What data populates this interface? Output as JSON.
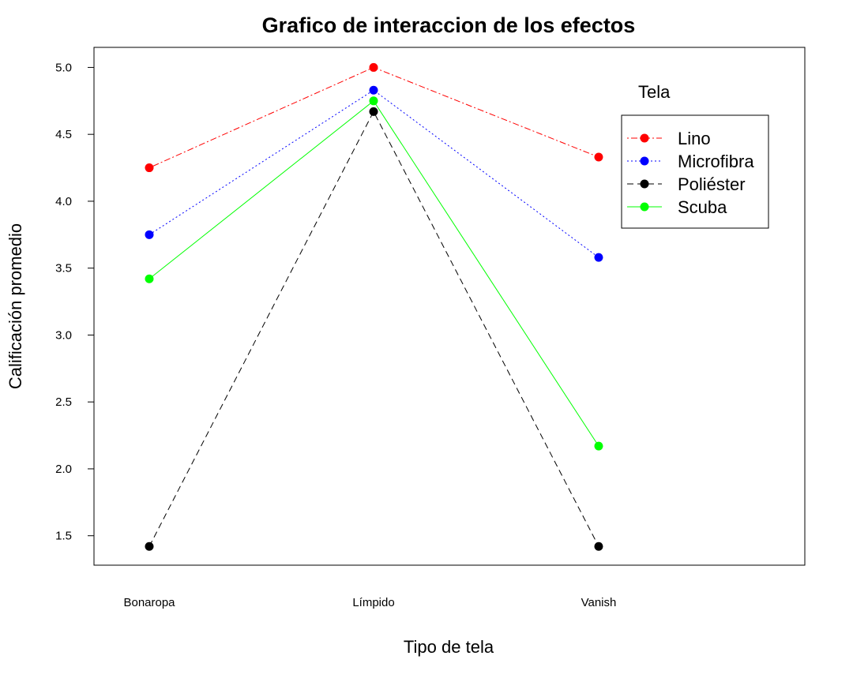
{
  "chart_data": {
    "type": "line",
    "title": "Grafico de interaccion de los efectos",
    "xlabel": "Tipo de tela",
    "ylabel": "Calificación promedio",
    "categories": [
      "Bonaropa",
      "Límpido",
      "Vanish"
    ],
    "ylim": [
      1.28,
      5.15
    ],
    "yticks": [
      1.5,
      2.0,
      2.5,
      3.0,
      3.5,
      4.0,
      4.5,
      5.0
    ],
    "ytick_labels": [
      "1.5",
      "2.0",
      "2.5",
      "3.0",
      "3.5",
      "4.0",
      "4.5",
      "5.0"
    ],
    "grid": false,
    "legend": {
      "title": "Tela",
      "position": "top-right"
    },
    "series": [
      {
        "name": "Lino",
        "values": [
          4.25,
          5.0,
          4.33
        ],
        "color": "#ff0000",
        "dash": "dotdash"
      },
      {
        "name": "Microfibra",
        "values": [
          3.75,
          4.83,
          3.58
        ],
        "color": "#0000ff",
        "dash": "dotted"
      },
      {
        "name": "Poliéster",
        "values": [
          1.42,
          4.67,
          1.42
        ],
        "color": "#000000",
        "dash": "dashed"
      },
      {
        "name": "Scuba",
        "values": [
          3.42,
          4.75,
          2.17
        ],
        "color": "#00ff00",
        "dash": "solid"
      }
    ]
  }
}
